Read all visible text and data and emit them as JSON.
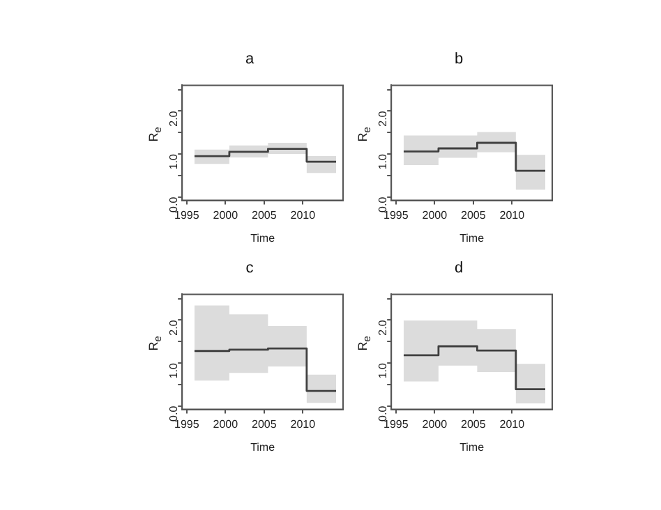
{
  "chart_data": [
    {
      "type": "step",
      "title": "a",
      "xlabel": "Time",
      "ylabel": "R$_{e}$",
      "xlim": [
        1994.4,
        2015.2
      ],
      "ylim": [
        -0.08,
        2.6
      ],
      "xticks": [
        1995,
        2000,
        2005,
        2010
      ],
      "yticks": [
        {
          "value": 0,
          "label": "0.0"
        },
        {
          "value": 0.5,
          "label": null
        },
        {
          "value": 1,
          "label": "1.0"
        },
        {
          "value": 1.5,
          "label": null
        },
        {
          "value": 2,
          "label": "2.0"
        },
        {
          "value": 2.5,
          "label": null
        }
      ],
      "grid": false,
      "series": [
        {
          "color": "#404040",
          "x": [
            1996,
            2000.5,
            2005.5,
            2010.5,
            2014.3
          ],
          "values": [
            0.95,
            1.05,
            1.12,
            0.82,
            0.82
          ],
          "lower": [
            0.77,
            0.92,
            1.0,
            0.56,
            0.56
          ],
          "upper": [
            1.1,
            1.2,
            1.26,
            0.95,
            0.95
          ]
        }
      ]
    },
    {
      "type": "step",
      "title": "b",
      "xlabel": "Time",
      "ylabel": "R$_{e}$",
      "xlim": [
        1994.4,
        2015.2
      ],
      "ylim": [
        -0.08,
        2.6
      ],
      "xticks": [
        1995,
        2000,
        2005,
        2010
      ],
      "yticks": [
        {
          "value": 0,
          "label": "0.0"
        },
        {
          "value": 0.5,
          "label": null
        },
        {
          "value": 1,
          "label": "1.0"
        },
        {
          "value": 1.5,
          "label": null
        },
        {
          "value": 2,
          "label": "2.0"
        },
        {
          "value": 2.5,
          "label": null
        }
      ],
      "grid": false,
      "series": [
        {
          "color": "#404040",
          "x": [
            1996,
            2000.5,
            2005.5,
            2010.5,
            2014.3
          ],
          "values": [
            1.06,
            1.13,
            1.26,
            0.61,
            0.61
          ],
          "lower": [
            0.74,
            0.91,
            1.04,
            0.17,
            0.17
          ],
          "upper": [
            1.43,
            1.43,
            1.51,
            0.98,
            0.98
          ]
        }
      ]
    },
    {
      "type": "step",
      "title": "c",
      "xlabel": "Time",
      "ylabel": "R$_{e}$",
      "xlim": [
        1994.4,
        2015.2
      ],
      "ylim": [
        -0.08,
        2.6
      ],
      "xticks": [
        1995,
        2000,
        2005,
        2010
      ],
      "yticks": [
        {
          "value": 0,
          "label": "0.0"
        },
        {
          "value": 0.5,
          "label": null
        },
        {
          "value": 1,
          "label": "1.0"
        },
        {
          "value": 1.5,
          "label": null
        },
        {
          "value": 2,
          "label": "2.0"
        },
        {
          "value": 2.5,
          "label": null
        }
      ],
      "grid": false,
      "series": [
        {
          "color": "#404040",
          "x": [
            1996,
            2000.5,
            2005.5,
            2010.5,
            2014.3
          ],
          "values": [
            1.28,
            1.31,
            1.34,
            0.35,
            0.35
          ],
          "lower": [
            0.59,
            0.77,
            0.92,
            0.07,
            0.07
          ],
          "upper": [
            2.34,
            2.13,
            1.86,
            0.73,
            0.73
          ]
        }
      ]
    },
    {
      "type": "step",
      "title": "d",
      "xlabel": "Time",
      "ylabel": "R$_{e}$",
      "xlim": [
        1994.4,
        2015.2
      ],
      "ylim": [
        -0.08,
        2.6
      ],
      "xticks": [
        1995,
        2000,
        2005,
        2010
      ],
      "yticks": [
        {
          "value": 0,
          "label": "0.0"
        },
        {
          "value": 0.5,
          "label": null
        },
        {
          "value": 1,
          "label": "1.0"
        },
        {
          "value": 1.5,
          "label": null
        },
        {
          "value": 2,
          "label": "2.0"
        },
        {
          "value": 2.5,
          "label": null
        }
      ],
      "grid": false,
      "series": [
        {
          "color": "#404040",
          "x": [
            1996,
            2000.5,
            2005.5,
            2010.5,
            2014.3
          ],
          "values": [
            1.18,
            1.39,
            1.29,
            0.39,
            0.39
          ],
          "lower": [
            0.57,
            0.94,
            0.79,
            0.06,
            0.06
          ],
          "upper": [
            1.99,
            1.99,
            1.79,
            0.98,
            0.98
          ]
        }
      ]
    }
  ]
}
